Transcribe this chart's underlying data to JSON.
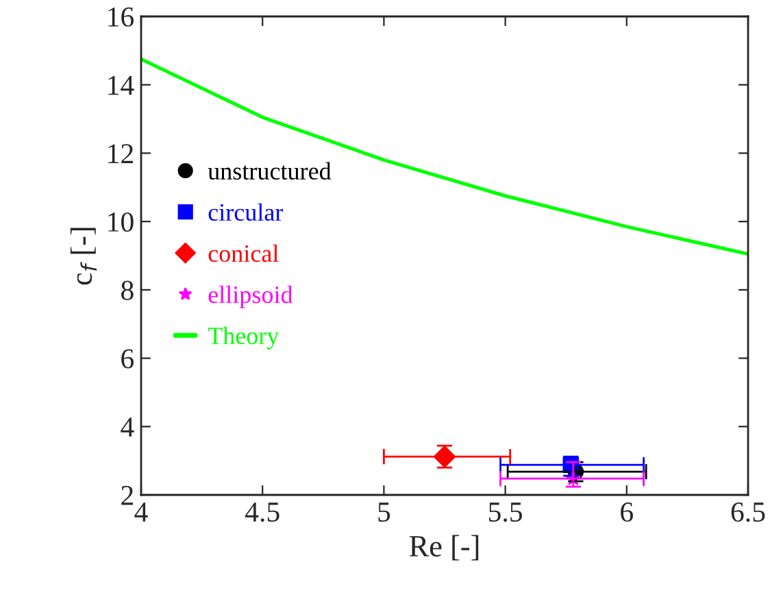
{
  "chart_data": {
    "type": "scatter",
    "xlabel": "Re [-]",
    "ylabel": "c$_{f}$ [-]",
    "xlim": [
      4,
      6.5
    ],
    "xticks": [
      4,
      4.5,
      5,
      5.5,
      6,
      6.5
    ],
    "ylim": [
      2,
      16
    ],
    "yticks": [
      2,
      4,
      6,
      8,
      10,
      12,
      14,
      16
    ],
    "legend": "left",
    "grid": false,
    "series": [
      {
        "name": "unstructured",
        "color": "#000000",
        "marker": "circle",
        "x": [
          5.79
        ],
        "values": [
          2.68
        ],
        "errors": [
          [
            2.4,
            2.96
          ]
        ],
        "xerrors": [
          [
            5.51,
            6.08
          ]
        ]
      },
      {
        "name": "circular",
        "color": "#0000ff",
        "marker": "square",
        "x": [
          5.77
        ],
        "values": [
          2.88
        ],
        "errors": [
          [
            2.56,
            3.12
          ]
        ],
        "xerrors": [
          [
            5.48,
            6.07
          ]
        ]
      },
      {
        "name": "conical",
        "color": "#ff0000",
        "marker": "diamond",
        "x": [
          5.25
        ],
        "values": [
          3.12
        ],
        "errors": [
          [
            2.8,
            3.44
          ]
        ],
        "xerrors": [
          [
            5.0,
            5.52
          ]
        ]
      },
      {
        "name": "ellipsoid",
        "color": "#ff00ff",
        "marker": "star",
        "x": [
          5.78
        ],
        "values": [
          2.48
        ],
        "errors": [
          [
            2.24,
            2.96
          ]
        ],
        "xerrors": [
          [
            5.48,
            6.07
          ]
        ]
      },
      {
        "name": "Theory",
        "type": "line",
        "color": "#00ff00",
        "x": [
          4,
          4.5,
          5,
          5.5,
          6,
          6.5
        ],
        "values": [
          14.75,
          13.05,
          11.8,
          10.75,
          9.85,
          9.05
        ]
      }
    ]
  }
}
